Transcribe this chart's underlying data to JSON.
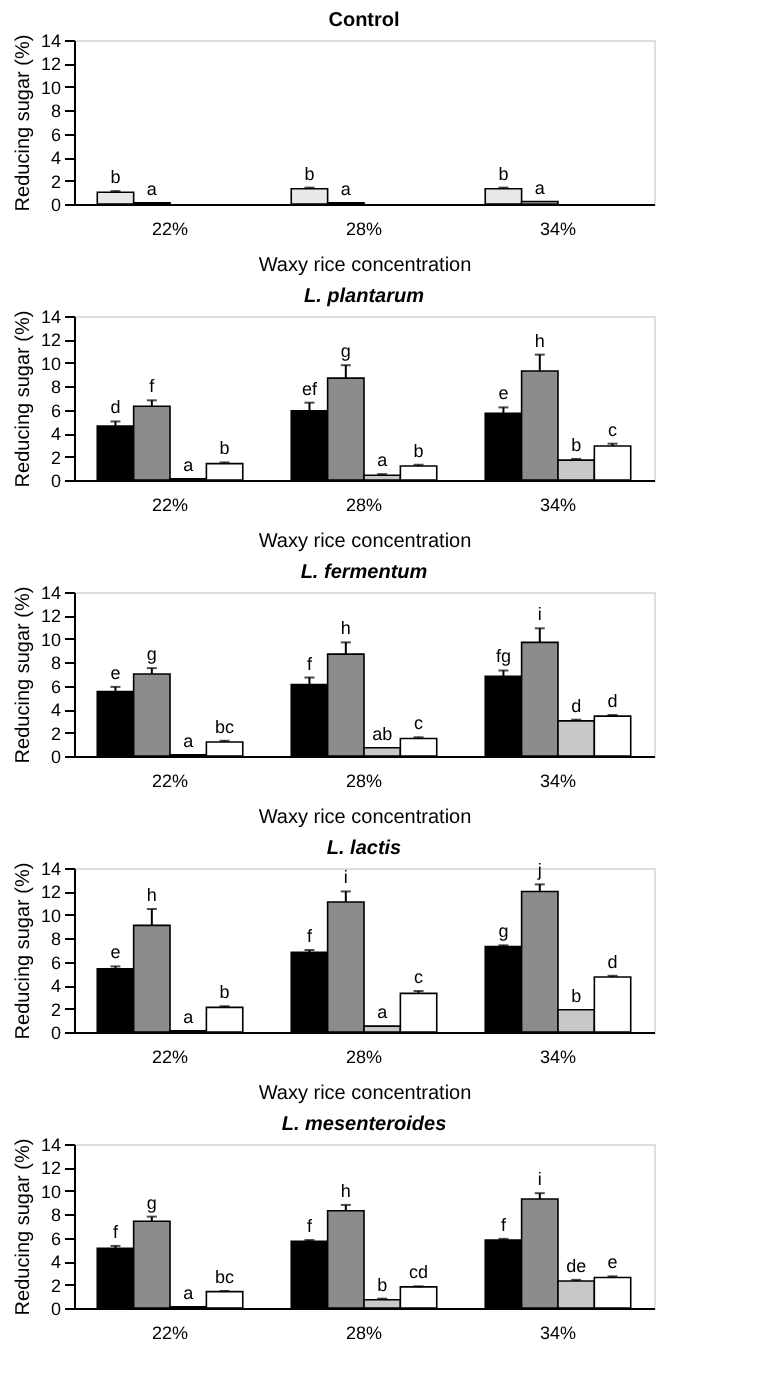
{
  "chart_data": [
    {
      "type": "bar",
      "title": "Control",
      "xlabel": "Waxy rice concentration",
      "ylabel": "Reducing sugar (%)",
      "categories": [
        "22%",
        "28%",
        "34%"
      ],
      "ylim": [
        0,
        14
      ],
      "yticks": [
        0,
        2,
        4,
        6,
        8,
        10,
        12,
        14
      ],
      "series": [
        {
          "color": "#e8e8e8",
          "values": [
            1.0,
            1.3,
            1.3
          ],
          "errors": [
            [
              1.0,
              1.1
            ],
            [
              1.3,
              1.4
            ],
            [
              1.3,
              1.4
            ]
          ],
          "value_labels": [
            "b",
            "b",
            "b"
          ]
        },
        {
          "color": "#ffffff",
          "values": [
            0.1,
            0.1,
            0.2
          ],
          "errors": [
            null,
            null,
            null
          ],
          "value_labels": [
            "a",
            "a",
            "a"
          ]
        }
      ]
    },
    {
      "type": "bar",
      "title": "L. plantarum",
      "xlabel": "Waxy rice concentration",
      "ylabel": "Reducing sugar (%)",
      "categories": [
        "22%",
        "28%",
        "34%"
      ],
      "ylim": [
        0,
        14
      ],
      "yticks": [
        0,
        2,
        4,
        6,
        8,
        10,
        12,
        14
      ],
      "grid": false,
      "legend": false,
      "series": [
        {
          "color": "#000000",
          "values": [
            4.6,
            5.9,
            5.7
          ],
          "errors": [
            [
              4.6,
              5.0
            ],
            [
              5.9,
              6.6
            ],
            [
              5.7,
              6.2
            ]
          ],
          "value_labels": [
            "d",
            "ef",
            "e"
          ]
        },
        {
          "color": "#8c8c8c",
          "values": [
            6.3,
            8.7,
            9.3
          ],
          "errors": [
            [
              6.3,
              6.8
            ],
            [
              8.7,
              9.8
            ],
            [
              9.3,
              10.7
            ]
          ],
          "value_labels": [
            "f",
            "g",
            "h"
          ]
        },
        {
          "color": "#c8c8c8",
          "values": [
            0.1,
            0.4,
            1.7
          ],
          "errors": [
            null,
            [
              0.4,
              0.5
            ],
            [
              1.7,
              1.8
            ]
          ],
          "value_labels": [
            "a",
            "a",
            "b"
          ]
        },
        {
          "color": "#ffffff",
          "values": [
            1.4,
            1.2,
            2.9
          ],
          "errors": [
            [
              1.4,
              1.5
            ],
            [
              1.2,
              1.3
            ],
            [
              2.9,
              3.1
            ]
          ],
          "value_labels": [
            "b",
            "b",
            "c"
          ]
        }
      ]
    },
    {
      "type": "bar",
      "title": "L. fermentum",
      "xlabel": "Waxy rice concentration",
      "ylabel": "Reducing sugar (%)",
      "categories": [
        "22%",
        "28%",
        "34%"
      ],
      "ylim": [
        0,
        14
      ],
      "yticks": [
        0,
        2,
        4,
        6,
        8,
        10,
        12,
        14
      ],
      "grid": false,
      "legend": false,
      "series": [
        {
          "color": "#000000",
          "values": [
            5.5,
            6.1,
            6.8
          ],
          "errors": [
            [
              5.5,
              5.9
            ],
            [
              6.1,
              6.7
            ],
            [
              6.8,
              7.3
            ]
          ],
          "value_labels": [
            "e",
            "f",
            "fg"
          ]
        },
        {
          "color": "#8c8c8c",
          "values": [
            7.0,
            8.7,
            9.7
          ],
          "errors": [
            [
              7.0,
              7.5
            ],
            [
              8.7,
              9.7
            ],
            [
              9.7,
              10.9
            ]
          ],
          "value_labels": [
            "g",
            "h",
            "i"
          ]
        },
        {
          "color": "#c8c8c8",
          "values": [
            0.1,
            0.7,
            3.0
          ],
          "errors": [
            null,
            null,
            [
              3.0,
              3.1
            ]
          ],
          "value_labels": [
            "a",
            "ab",
            "d"
          ]
        },
        {
          "color": "#ffffff",
          "values": [
            1.2,
            1.5,
            3.4
          ],
          "errors": [
            [
              1.2,
              1.3
            ],
            [
              1.5,
              1.6
            ],
            [
              3.4,
              3.5
            ]
          ],
          "value_labels": [
            "bc",
            "c",
            "d"
          ]
        }
      ]
    },
    {
      "type": "bar",
      "title": "L. lactis",
      "xlabel": "Waxy rice concentration",
      "ylabel": "Reducing sugar (%)",
      "categories": [
        "22%",
        "28%",
        "34%"
      ],
      "ylim": [
        0,
        14
      ],
      "yticks": [
        0,
        2,
        4,
        6,
        8,
        10,
        12,
        14
      ],
      "grid": false,
      "legend": false,
      "series": [
        {
          "color": "#000000",
          "values": [
            5.4,
            6.8,
            7.3
          ],
          "errors": [
            [
              5.4,
              5.6
            ],
            [
              6.8,
              7.0
            ],
            [
              7.3,
              7.4
            ]
          ],
          "value_labels": [
            "e",
            "f",
            "g"
          ]
        },
        {
          "color": "#8c8c8c",
          "values": [
            9.1,
            11.1,
            12.0
          ],
          "errors": [
            [
              9.1,
              10.5
            ],
            [
              11.1,
              12.0
            ],
            [
              12.0,
              12.6
            ]
          ],
          "value_labels": [
            "h",
            "i",
            "j"
          ]
        },
        {
          "color": "#c8c8c8",
          "values": [
            0.1,
            0.5,
            1.9
          ],
          "errors": [
            null,
            null,
            null
          ],
          "value_labels": [
            "a",
            "a",
            "b"
          ]
        },
        {
          "color": "#ffffff",
          "values": [
            2.1,
            3.3,
            4.7
          ],
          "errors": [
            [
              2.1,
              2.2
            ],
            [
              3.3,
              3.5
            ],
            [
              4.7,
              4.8
            ]
          ],
          "value_labels": [
            "b",
            "c",
            "d"
          ]
        }
      ]
    },
    {
      "type": "bar",
      "title": "L. mesenteroides",
      "ylabel": "Reducing sugar (%)",
      "categories": [
        "22%",
        "28%",
        "34%"
      ],
      "ylim": [
        0,
        14
      ],
      "yticks": [
        0,
        2,
        4,
        6,
        8,
        10,
        12,
        14
      ],
      "grid": false,
      "legend": false,
      "series": [
        {
          "color": "#000000",
          "values": [
            5.1,
            5.7,
            5.8
          ],
          "errors": [
            [
              5.1,
              5.3
            ],
            [
              5.7,
              5.8
            ],
            [
              5.8,
              5.9
            ]
          ],
          "value_labels": [
            "f",
            "f",
            "f"
          ]
        },
        {
          "color": "#8c8c8c",
          "values": [
            7.4,
            8.3,
            9.3
          ],
          "errors": [
            [
              7.4,
              7.8
            ],
            [
              8.3,
              8.8
            ],
            [
              9.3,
              9.8
            ]
          ],
          "value_labels": [
            "g",
            "h",
            "i"
          ]
        },
        {
          "color": "#c8c8c8",
          "values": [
            0.1,
            0.7,
            2.3
          ],
          "errors": [
            null,
            [
              0.7,
              0.8
            ],
            [
              2.3,
              2.4
            ]
          ],
          "value_labels": [
            "a",
            "b",
            "de"
          ]
        },
        {
          "color": "#ffffff",
          "values": [
            1.4,
            1.8,
            2.6
          ],
          "errors": [
            [
              1.4,
              1.45
            ],
            [
              1.8,
              1.85
            ],
            [
              2.6,
              2.7
            ]
          ],
          "value_labels": [
            "bc",
            "cd",
            "e"
          ]
        }
      ]
    }
  ]
}
